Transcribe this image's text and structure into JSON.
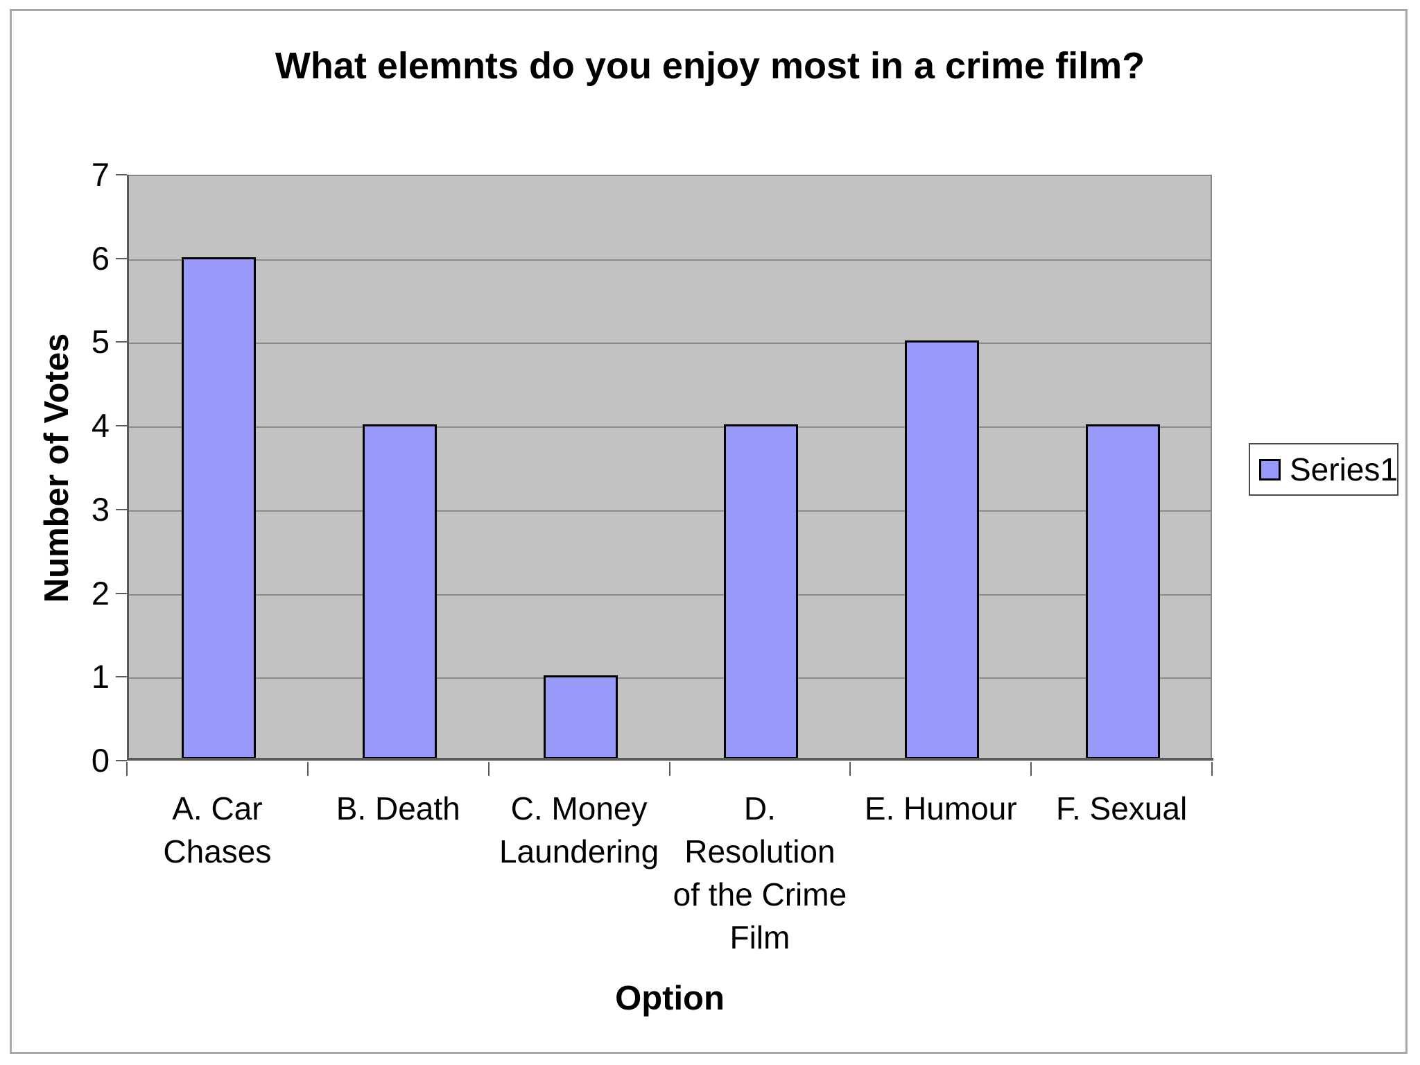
{
  "chart_data": {
    "type": "bar",
    "title": "What elemnts do you enjoy most in a crime film?",
    "xlabel": "Option",
    "ylabel": "Number of Votes",
    "categories": [
      "A. Car Chases",
      "B. Death",
      "C. Money Laundering",
      "D. Resolution of the Crime Film",
      "E. Humour",
      "F. Sexual"
    ],
    "values": [
      6,
      4,
      1,
      4,
      5,
      4
    ],
    "ylim": [
      0,
      7
    ],
    "yticks": [
      0,
      1,
      2,
      3,
      4,
      5,
      6,
      7
    ],
    "grid": "horizontal gridlines on",
    "legend": {
      "position": "right",
      "entries": [
        "Series1"
      ]
    },
    "colors": {
      "bar_fill": "#9999fa",
      "bar_border": "#000000",
      "plot_bg": "#c2c2c2",
      "gridline": "#8a8a8a",
      "axis": "#5a5a5a"
    }
  }
}
